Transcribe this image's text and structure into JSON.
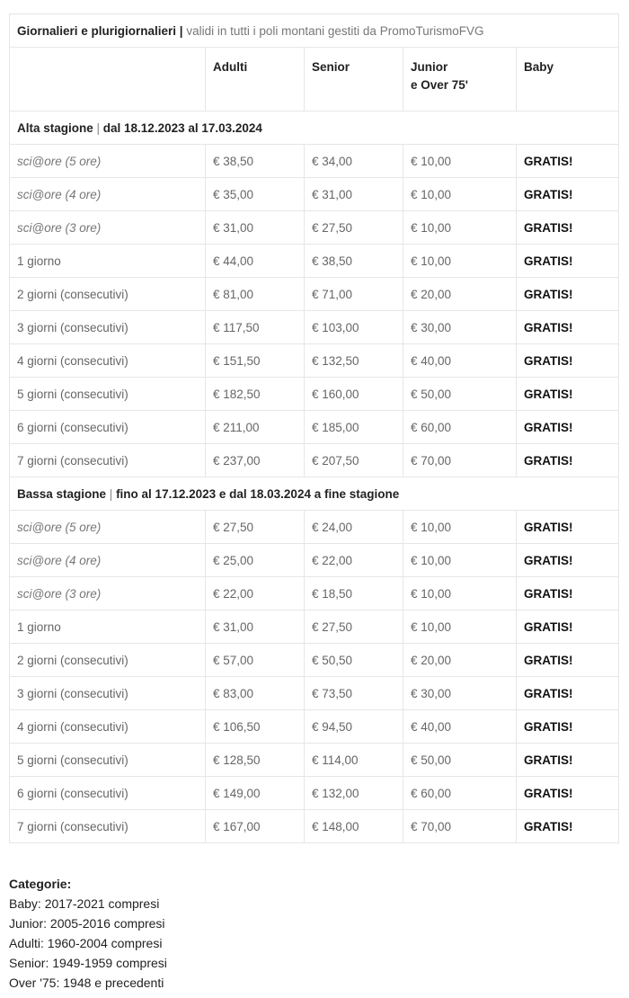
{
  "title": {
    "bold": "Giornalieri e plurigiornalieri |",
    "rest": " validi in tutti i poli montani gestiti da PromoTurismoFVG"
  },
  "headers": {
    "adulti": "Adulti",
    "senior": "Senior",
    "junior1": "Junior",
    "junior2": "e Over 75'",
    "baby": "Baby"
  },
  "sections": [
    {
      "label": "Alta stagione",
      "sep": " | ",
      "dates": "dal 18.12.2023 al 17.03.2024",
      "rows": [
        [
          "sci@ore (5 ore)",
          "€ 38,50",
          "€ 34,00",
          "€ 10,00",
          "GRATIS!"
        ],
        [
          "sci@ore (4 ore)",
          "€ 35,00",
          "€ 31,00",
          "€ 10,00",
          "GRATIS!"
        ],
        [
          "sci@ore (3 ore)",
          "€ 31,00",
          "€ 27,50",
          "€ 10,00",
          "GRATIS!"
        ],
        [
          "1 giorno",
          "€ 44,00",
          "€ 38,50",
          "€ 10,00",
          "GRATIS!"
        ],
        [
          "2 giorni (consecutivi)",
          "€ 81,00",
          "€ 71,00",
          "€ 20,00",
          "GRATIS!"
        ],
        [
          "3 giorni (consecutivi)",
          "€ 117,50",
          "€ 103,00",
          "€ 30,00",
          "GRATIS!"
        ],
        [
          "4 giorni (consecutivi)",
          "€ 151,50",
          "€ 132,50",
          "€ 40,00",
          "GRATIS!"
        ],
        [
          "5 giorni (consecutivi)",
          "€ 182,50",
          "€ 160,00",
          "€ 50,00",
          "GRATIS!"
        ],
        [
          "6 giorni (consecutivi)",
          "€ 211,00",
          "€ 185,00",
          "€ 60,00",
          "GRATIS!"
        ],
        [
          "7 giorni (consecutivi)",
          "€ 237,00",
          "€ 207,50",
          "€ 70,00",
          "GRATIS!"
        ]
      ]
    },
    {
      "label": "Bassa stagione",
      "sep": " | ",
      "dates": "fino al 17.12.2023 e dal 18.03.2024 a fine stagione",
      "rows": [
        [
          "sci@ore (5 ore)",
          "€ 27,50",
          "€ 24,00",
          "€ 10,00",
          "GRATIS!"
        ],
        [
          "sci@ore (4 ore)",
          "€ 25,00",
          "€ 22,00",
          "€ 10,00",
          "GRATIS!"
        ],
        [
          "sci@ore (3 ore)",
          "€ 22,00",
          "€ 18,50",
          "€ 10,00",
          "GRATIS!"
        ],
        [
          "1 giorno",
          "€ 31,00",
          "€ 27,50",
          "€ 10,00",
          "GRATIS!"
        ],
        [
          "2 giorni (consecutivi)",
          "€ 57,00",
          "€ 50,50",
          "€ 20,00",
          "GRATIS!"
        ],
        [
          "3 giorni (consecutivi)",
          "€ 83,00",
          "€ 73,50",
          "€ 30,00",
          "GRATIS!"
        ],
        [
          "4 giorni (consecutivi)",
          "€ 106,50",
          "€ 94,50",
          "€ 40,00",
          "GRATIS!"
        ],
        [
          "5 giorni (consecutivi)",
          "€ 128,50",
          "€ 114,00",
          "€ 50,00",
          "GRATIS!"
        ],
        [
          "6 giorni (consecutivi)",
          "€ 149,00",
          "€ 132,00",
          "€ 60,00",
          "GRATIS!"
        ],
        [
          "7 giorni (consecutivi)",
          "€ 167,00",
          "€ 148,00",
          "€ 70,00",
          "GRATIS!"
        ]
      ]
    }
  ],
  "categories": {
    "heading": "Categorie:",
    "items": [
      "Baby: 2017-2021 compresi",
      "Junior: 2005-2016 compresi",
      "Adulti: 1960-2004 compresi",
      "Senior: 1949-1959 compresi",
      "Over '75: 1948 e precedenti"
    ]
  }
}
